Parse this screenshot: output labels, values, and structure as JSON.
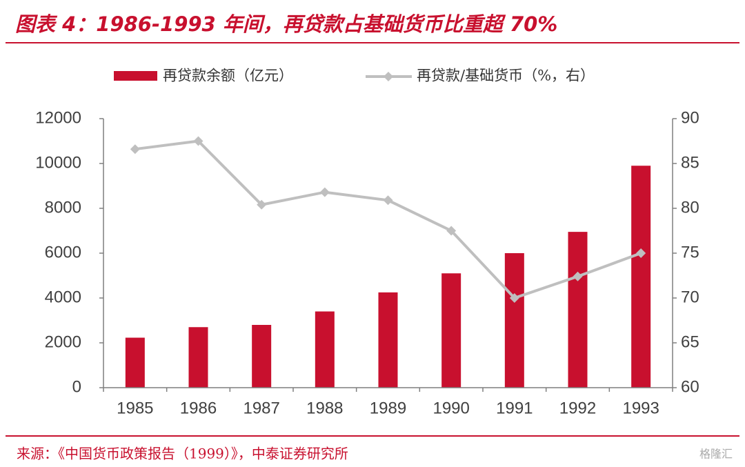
{
  "chart_data": {
    "type": "bar_line",
    "title": "图表 4：1986-1993 年间，再贷款占基础货币比重超 70%",
    "source": "来源：《中国货币政策报告（1999）》，中泰证券研究所",
    "watermark": "格隆汇",
    "categories": [
      "1985",
      "1986",
      "1987",
      "1988",
      "1989",
      "1990",
      "1991",
      "1992",
      "1993"
    ],
    "series": [
      {
        "name": "再贷款余额（亿元）",
        "type": "bar",
        "color": "#c8102e",
        "values": [
          2230,
          2700,
          2800,
          3400,
          4250,
          5100,
          6000,
          6950,
          9900
        ]
      },
      {
        "name": "再贷款/基础货币（%，右）",
        "type": "line",
        "axis": "y2",
        "color": "#bfbfbf",
        "values": [
          86.6,
          87.5,
          80.4,
          81.8,
          80.9,
          77.5,
          70.0,
          72.4,
          75.0
        ]
      }
    ],
    "ylim": [
      0,
      12000
    ],
    "yticks": [
      0,
      2000,
      4000,
      6000,
      8000,
      10000,
      12000
    ],
    "y2lim": [
      60,
      90
    ],
    "y2ticks": [
      60,
      65,
      70,
      75,
      80,
      85,
      90
    ],
    "legend": "top"
  }
}
